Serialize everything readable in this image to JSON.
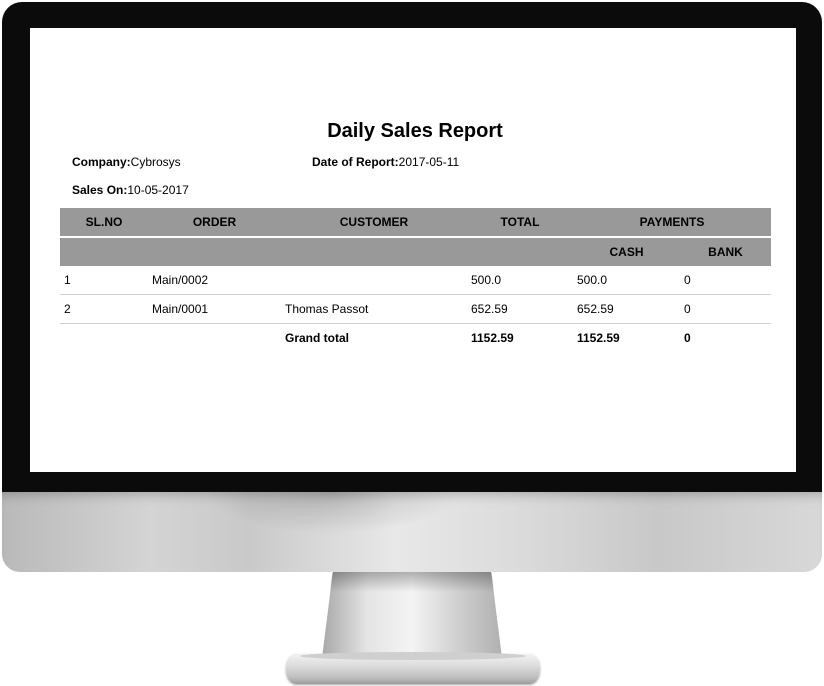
{
  "report": {
    "title": "Daily Sales Report",
    "company_label": "Company:",
    "company_value": "Cybrosys",
    "date_label": "Date of Report:",
    "date_value": "2017-05-11",
    "sales_on_label": "Sales On:",
    "sales_on_value": "10-05-2017"
  },
  "table": {
    "headers": {
      "slno": "SL.NO",
      "order": "ORDER",
      "customer": "CUSTOMER",
      "total": "TOTAL",
      "payments": "PAYMENTS",
      "cash": "CASH",
      "bank": "BANK"
    },
    "rows": [
      {
        "slno": "1",
        "order": "Main/0002",
        "customer": "",
        "total": "500.0",
        "cash": "500.0",
        "bank": "0"
      },
      {
        "slno": "2",
        "order": "Main/0001",
        "customer": "Thomas Passot",
        "total": "652.59",
        "cash": "652.59",
        "bank": "0"
      }
    ],
    "grand_total": {
      "label": "Grand total",
      "total": "1152.59",
      "cash": "1152.59",
      "bank": "0"
    }
  }
}
